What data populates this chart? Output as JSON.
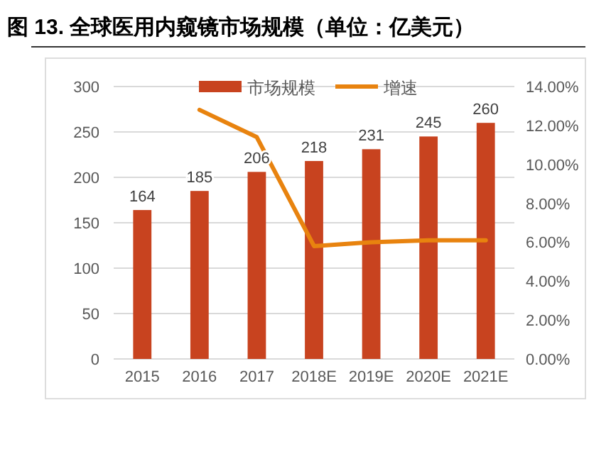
{
  "chart_data": {
    "type": "bar",
    "title": "图 13. 全球医用内窥镜市场规模（单位：亿美元）",
    "categories": [
      "2015",
      "2016",
      "2017",
      "2018E",
      "2019E",
      "2020E",
      "2021E"
    ],
    "series": [
      {
        "name": "市场规模",
        "color": "#c8431f",
        "values": [
          164,
          185,
          206,
          218,
          231,
          245,
          260
        ],
        "value_labels": [
          "164",
          "185",
          "206",
          "218",
          "231",
          "245",
          "260"
        ]
      },
      {
        "name": "增速",
        "type": "line",
        "axis": "y2",
        "color": "#e8830f",
        "values": [
          null,
          12.8,
          11.4,
          5.8,
          6.0,
          6.1,
          6.1
        ]
      }
    ],
    "ylim": [
      0,
      300
    ],
    "yticks": [
      0,
      50,
      100,
      150,
      200,
      250,
      300
    ],
    "y2lim": [
      0,
      14
    ],
    "y2ticks": [
      {
        "value": 0,
        "label": "0.00%"
      },
      {
        "value": 2,
        "label": "2.00%"
      },
      {
        "value": 4,
        "label": "4.00%"
      },
      {
        "value": 6,
        "label": "6.00%"
      },
      {
        "value": 8,
        "label": "8.00%"
      },
      {
        "value": 10,
        "label": "10.00%"
      },
      {
        "value": 12,
        "label": "12.00%"
      },
      {
        "value": 14,
        "label": "14.00%"
      }
    ],
    "grid": "y",
    "legend": "top",
    "marker": "none"
  }
}
